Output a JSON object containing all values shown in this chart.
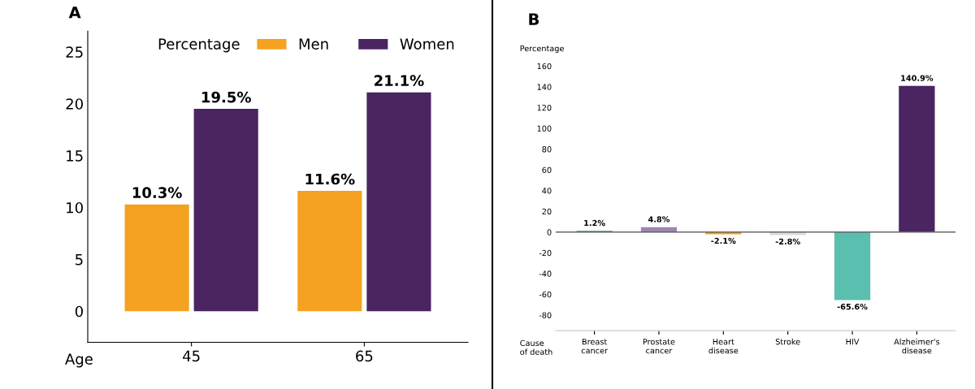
{
  "chart_data": [
    {
      "type": "bar",
      "title": "A",
      "xlabel": "Age",
      "legend_title": "Percentage",
      "legend": "top right",
      "categories": [
        "45",
        "65"
      ],
      "ylim": [
        -3,
        27
      ],
      "yticks": [
        0,
        5,
        10,
        15,
        20,
        25
      ],
      "series": [
        {
          "name": "Men",
          "color": "#f5a122",
          "values": [
            10.3,
            11.6
          ],
          "value_labels": [
            "10.3%",
            "11.6%"
          ]
        },
        {
          "name": "Women",
          "color": "#4b2462",
          "values": [
            19.5,
            21.1
          ],
          "value_labels": [
            "19.5%",
            "21.1%"
          ]
        }
      ]
    },
    {
      "type": "bar",
      "title": "B",
      "xlabel": "Cause\nof death",
      "ylabel": "Percentage",
      "categories": [
        "Breast\ncancer",
        "Prostate\ncancer",
        "Heart\ndisease",
        "Stroke",
        "HIV",
        "Alzheimer's\ndisease"
      ],
      "values": [
        1.2,
        4.8,
        -2.1,
        -2.8,
        -65.6,
        140.9
      ],
      "colors": [
        "#3a9a8c",
        "#9d86b1",
        "#f5a122",
        "#dcdcdc",
        "#5bbfb0",
        "#4b2462"
      ],
      "value_labels": [
        "1.2%",
        "4.8%",
        "-2.1%",
        "-2.8%",
        "-65.6%",
        "140.9%"
      ],
      "ylim": [
        -95,
        160
      ],
      "yticks": [
        -80,
        -60,
        -40,
        -20,
        0,
        20,
        40,
        60,
        80,
        100,
        120,
        140,
        160
      ],
      "ref_lines": [
        {
          "axis": "y",
          "value": 0,
          "color": "#666666"
        }
      ]
    }
  ]
}
